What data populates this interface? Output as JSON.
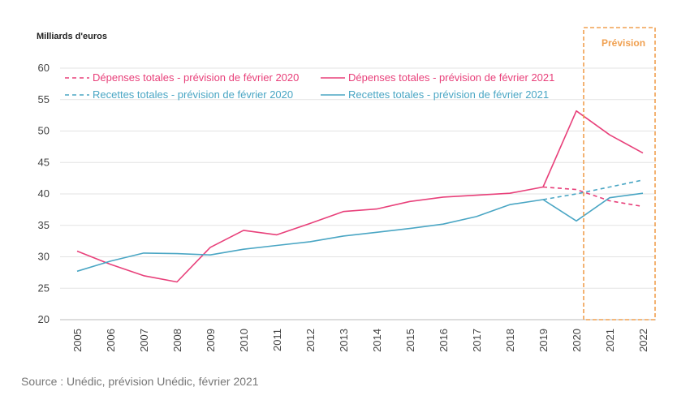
{
  "chart_data": {
    "type": "line",
    "ylabel": "Milliards d'euros",
    "xlabel": "",
    "ylim": [
      20,
      60
    ],
    "yticks": [
      20,
      25,
      30,
      35,
      40,
      45,
      50,
      55,
      60
    ],
    "categories": [
      "2005",
      "2006",
      "2007",
      "2008",
      "2009",
      "2010",
      "2011",
      "2012",
      "2013",
      "2014",
      "2015",
      "2016",
      "2017",
      "2018",
      "2019",
      "2020",
      "2021",
      "2022"
    ],
    "forecast_label": "Prévision",
    "forecast_from": "2021",
    "grid": "horizontal",
    "legend_position": "top-left",
    "series": [
      {
        "name": "Dépenses totales - prévision de février 2020",
        "color": "#e8407a",
        "style": "dashed",
        "values": [
          null,
          null,
          null,
          null,
          null,
          null,
          null,
          null,
          null,
          null,
          null,
          null,
          null,
          null,
          41.1,
          40.7,
          38.9,
          38.0
        ]
      },
      {
        "name": "Dépenses totales - prévision de février 2021",
        "color": "#e8407a",
        "style": "solid",
        "values": [
          30.9,
          28.8,
          27.0,
          26.0,
          31.5,
          34.2,
          33.5,
          35.3,
          37.2,
          37.6,
          38.8,
          39.5,
          39.8,
          40.1,
          41.1,
          53.2,
          49.4,
          46.5
        ]
      },
      {
        "name": "Recettes totales - prévision de février 2020",
        "color": "#4aa6c4",
        "style": "dashed",
        "values": [
          null,
          null,
          null,
          null,
          null,
          null,
          null,
          null,
          null,
          null,
          null,
          null,
          null,
          null,
          39.1,
          40.0,
          41.1,
          42.2
        ]
      },
      {
        "name": "Recettes totales - prévision de février 2021",
        "color": "#4aa6c4",
        "style": "solid",
        "values": [
          27.7,
          29.3,
          30.6,
          30.5,
          30.3,
          31.2,
          31.8,
          32.4,
          33.3,
          33.9,
          34.5,
          35.2,
          36.4,
          38.3,
          39.1,
          35.7,
          39.4,
          40.1
        ]
      }
    ]
  },
  "source": "Source : Unédic, prévision Unédic, février 2021"
}
